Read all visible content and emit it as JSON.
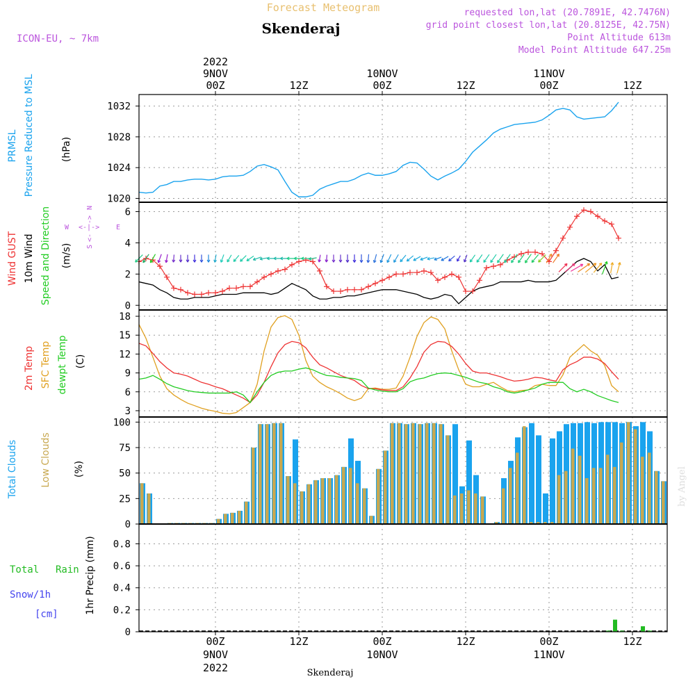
{
  "header": {
    "product": "Forecast Meteogram",
    "model": "ICON-EU, ~ 7km",
    "location": "Skenderaj",
    "requested": "requested lon,lat (20.7891E, 42.7476N)",
    "gridpoint": "grid point closest lon,lat (20.8125E, 42.75N)",
    "point_alt": "Point Altitude 613m",
    "model_alt": "Model Point Altitude 647.25m",
    "watermark": "by Angel",
    "footer_location": "Skenderaj"
  },
  "colors": {
    "pressure": "#1aa3ee",
    "gust": "#ee3333",
    "wind10m": "#000000",
    "temp2m": "#ee3333",
    "sfc": "#e0a020",
    "dewpt": "#22cc22",
    "total_clouds": "#1aa3ee",
    "low_clouds": "#c8a850",
    "rain": "#22bb22",
    "snow": "#4444ee",
    "label_purple": "#bb55dd"
  },
  "panel_labels": {
    "pressure": [
      "PRMSL",
      "Pressure Reduced to MSL",
      "(hPa)"
    ],
    "wind": [
      "Wind GUST",
      "10m Wind",
      "Speed and Direction",
      "(m/s)"
    ],
    "compass": {
      "n": "N",
      "e": "E",
      "w": "W",
      "s": "S"
    },
    "temp": [
      "2m Temp",
      "SFC Temp",
      "dewpt Temp",
      "(C)"
    ],
    "clouds": [
      "Total Clouds",
      "Low Clouds",
      "(%)"
    ],
    "precip": [
      "Total",
      "Rain",
      "Snow/1h",
      "[cm]",
      "1hr Precip (mm)"
    ]
  },
  "chart_data": {
    "type": "line",
    "time_axis": {
      "top_ticks": [
        {
          "hour": 0,
          "lines": [
            "2022",
            "9NOV",
            "00Z"
          ]
        },
        {
          "hour": 12,
          "lines": [
            "12Z"
          ]
        },
        {
          "hour": 24,
          "lines": [
            "10NOV",
            "00Z"
          ]
        },
        {
          "hour": 36,
          "lines": [
            "12Z"
          ]
        },
        {
          "hour": 48,
          "lines": [
            "11NOV",
            "00Z"
          ]
        },
        {
          "hour": 60,
          "lines": [
            "12Z"
          ]
        }
      ],
      "bottom_ticks": [
        {
          "hour": 0,
          "lines": [
            "00Z",
            "9NOV",
            "2022"
          ]
        },
        {
          "hour": 12,
          "lines": [
            "12Z"
          ]
        },
        {
          "hour": 24,
          "lines": [
            "00Z",
            "10NOV"
          ]
        },
        {
          "hour": 36,
          "lines": [
            "12Z"
          ]
        },
        {
          "hour": 48,
          "lines": [
            "00Z",
            "11NOV"
          ]
        },
        {
          "hour": 60,
          "lines": [
            "12Z"
          ]
        }
      ],
      "hours_start": -11,
      "hours_end": 65
    },
    "pressure": {
      "ylim": [
        1019.5,
        1033.5
      ],
      "yticks": [
        1020,
        1024,
        1028,
        1032
      ],
      "values": [
        1020.8,
        1020.7,
        1020.8,
        1021.6,
        1021.8,
        1022.2,
        1022.2,
        1022.4,
        1022.5,
        1022.5,
        1022.4,
        1022.5,
        1022.8,
        1022.9,
        1022.9,
        1023.0,
        1023.5,
        1024.2,
        1024.4,
        1024.1,
        1023.7,
        1022.2,
        1020.8,
        1020.2,
        1020.2,
        1020.4,
        1021.2,
        1021.6,
        1021.9,
        1022.2,
        1022.2,
        1022.5,
        1023.0,
        1023.3,
        1023.0,
        1023.0,
        1023.2,
        1023.5,
        1024.3,
        1024.7,
        1024.6,
        1023.8,
        1022.9,
        1022.4,
        1022.9,
        1023.3,
        1023.8,
        1024.8,
        1026.0,
        1026.8,
        1027.6,
        1028.5,
        1029.0,
        1029.3,
        1029.6,
        1029.7,
        1029.8,
        1029.9,
        1030.2,
        1030.8,
        1031.5,
        1031.7,
        1031.5,
        1030.6,
        1030.3,
        1030.4,
        1030.5,
        1030.6,
        1031.4,
        1032.5
      ]
    },
    "wind": {
      "ylim": [
        -0.3,
        6.6
      ],
      "yticks": [
        0,
        2,
        4,
        6
      ],
      "gust": [
        2.8,
        3.0,
        2.9,
        2.5,
        1.8,
        1.1,
        1.0,
        0.8,
        0.7,
        0.7,
        0.8,
        0.8,
        0.9,
        1.1,
        1.1,
        1.2,
        1.2,
        1.5,
        1.8,
        2.0,
        2.2,
        2.3,
        2.6,
        2.8,
        2.9,
        2.8,
        2.2,
        1.2,
        0.9,
        0.9,
        1.0,
        1.0,
        1.0,
        1.2,
        1.4,
        1.6,
        1.8,
        2.0,
        2.0,
        2.1,
        2.1,
        2.2,
        2.1,
        1.6,
        1.8,
        2.0,
        1.8,
        0.9,
        0.9,
        1.6,
        2.4,
        2.5,
        2.6,
        2.9,
        3.1,
        3.3,
        3.4,
        3.4,
        3.3,
        2.8,
        3.5,
        4.3,
        5.0,
        5.7,
        6.1,
        6.0,
        5.7,
        5.4,
        5.2,
        4.3
      ],
      "wind10m": [
        1.5,
        1.4,
        1.3,
        1.0,
        0.8,
        0.5,
        0.4,
        0.4,
        0.5,
        0.5,
        0.5,
        0.6,
        0.7,
        0.7,
        0.7,
        0.8,
        0.8,
        0.8,
        0.8,
        0.7,
        0.8,
        1.1,
        1.4,
        1.2,
        1.0,
        0.6,
        0.4,
        0.4,
        0.5,
        0.5,
        0.6,
        0.6,
        0.7,
        0.8,
        0.9,
        1.0,
        1.0,
        1.0,
        0.9,
        0.8,
        0.7,
        0.5,
        0.4,
        0.5,
        0.7,
        0.6,
        0.1,
        0.5,
        0.9,
        1.1,
        1.2,
        1.3,
        1.5,
        1.5,
        1.5,
        1.5,
        1.6,
        1.5,
        1.5,
        1.5,
        1.6,
        2.0,
        2.4,
        2.8,
        3.0,
        2.8,
        2.2,
        2.6,
        1.7,
        1.8
      ],
      "arrow_dirs_deg": [
        225,
        235,
        240,
        250,
        260,
        265,
        270,
        270,
        270,
        270,
        270,
        260,
        250,
        240,
        230,
        225,
        215,
        200,
        190,
        180,
        180,
        180,
        180,
        180,
        180,
        190,
        260,
        265,
        270,
        270,
        270,
        270,
        270,
        265,
        255,
        250,
        245,
        240,
        230,
        220,
        210,
        200,
        190,
        200,
        210,
        220,
        240,
        250,
        235,
        235,
        235,
        235,
        235,
        235,
        235,
        235,
        235,
        230,
        225,
        60,
        55,
        45,
        40,
        30,
        35,
        40,
        50,
        70,
        80,
        75
      ]
    },
    "temperature": {
      "ylim": [
        2,
        19
      ],
      "yticks": [
        3,
        6,
        9,
        12,
        15,
        18
      ],
      "t2m": [
        13.7,
        13.3,
        12.1,
        10.8,
        9.8,
        9.0,
        8.8,
        8.5,
        8.0,
        7.5,
        7.2,
        6.8,
        6.5,
        6.0,
        5.5,
        5.0,
        4.3,
        5.5,
        7.5,
        10.0,
        12.2,
        13.5,
        14.0,
        13.8,
        13.0,
        11.5,
        10.3,
        9.8,
        9.2,
        8.6,
        8.2,
        7.8,
        7.0,
        6.5,
        6.5,
        6.3,
        6.2,
        6.2,
        6.8,
        8.2,
        10.0,
        12.3,
        13.5,
        14.0,
        13.9,
        13.2,
        12.0,
        10.5,
        9.3,
        9.0,
        9.0,
        8.7,
        8.4,
        8.0,
        7.7,
        7.8,
        8.0,
        8.3,
        8.2,
        7.9,
        7.7,
        9.5,
        10.3,
        10.8,
        11.5,
        11.5,
        11.2,
        10.5,
        9.2,
        8.0
      ],
      "sfc": [
        16.7,
        14.5,
        11.5,
        8.5,
        6.5,
        5.5,
        4.8,
        4.2,
        3.8,
        3.4,
        3.1,
        2.9,
        2.6,
        2.5,
        2.7,
        3.5,
        4.3,
        7.2,
        12.5,
        16.3,
        17.8,
        18.1,
        17.5,
        15.0,
        11.0,
        8.5,
        7.5,
        6.8,
        6.3,
        5.7,
        5.0,
        4.6,
        5.0,
        6.5,
        6.6,
        6.4,
        6.4,
        6.6,
        8.5,
        11.5,
        14.8,
        17.0,
        17.9,
        17.5,
        16.0,
        12.5,
        9.5,
        7.2,
        6.8,
        6.8,
        7.2,
        7.5,
        6.8,
        6.2,
        6.0,
        6.2,
        6.3,
        7.0,
        7.2,
        7.0,
        7.0,
        8.7,
        11.5,
        12.5,
        13.5,
        12.5,
        11.8,
        10.2,
        7.0,
        6.0
      ],
      "dewpt": [
        8.0,
        8.2,
        8.6,
        8.0,
        7.3,
        6.8,
        6.5,
        6.2,
        6.0,
        5.9,
        5.8,
        5.8,
        5.8,
        5.8,
        6.0,
        5.5,
        4.3,
        6.0,
        7.5,
        8.6,
        9.1,
        9.3,
        9.3,
        9.6,
        9.8,
        9.5,
        9.0,
        8.6,
        8.5,
        8.3,
        8.2,
        8.1,
        7.8,
        6.6,
        6.3,
        6.1,
        6.0,
        6.0,
        6.5,
        7.6,
        8.0,
        8.2,
        8.6,
        8.9,
        9.0,
        8.9,
        8.6,
        8.3,
        7.9,
        7.5,
        7.3,
        6.8,
        6.5,
        6.0,
        5.8,
        6.0,
        6.3,
        6.6,
        7.2,
        7.5,
        7.5,
        7.5,
        6.5,
        6.0,
        6.4,
        6.0,
        5.4,
        5.0,
        4.6,
        4.3
      ],
      "axis_color": "#000000"
    },
    "clouds": {
      "ylim": [
        0,
        105
      ],
      "yticks": [
        0,
        25,
        50,
        75,
        100
      ],
      "total": [
        40,
        30,
        0,
        0,
        1,
        1,
        1,
        1,
        1,
        1,
        1,
        5,
        10,
        11,
        13,
        22,
        75,
        98,
        98,
        99,
        99,
        47,
        83,
        32,
        39,
        43,
        45,
        45,
        48,
        56,
        84,
        62,
        35,
        8,
        54,
        72,
        99,
        99,
        98,
        99,
        98,
        99,
        99,
        98,
        87,
        98,
        37,
        82,
        48,
        27,
        0,
        2,
        45,
        62,
        85,
        95,
        99,
        87,
        30,
        84,
        91,
        98,
        99,
        99,
        100,
        99,
        100,
        100,
        100,
        99,
        100,
        96,
        100,
        91,
        52,
        42
      ],
      "low": [
        40,
        30,
        0,
        0,
        1,
        1,
        1,
        1,
        1,
        1,
        1,
        5,
        10,
        11,
        13,
        22,
        75,
        98,
        98,
        99,
        99,
        47,
        40,
        32,
        39,
        43,
        45,
        45,
        48,
        56,
        55,
        40,
        35,
        8,
        54,
        72,
        99,
        99,
        98,
        99,
        98,
        99,
        99,
        98,
        87,
        28,
        30,
        33,
        30,
        27,
        0,
        2,
        35,
        55,
        70,
        96,
        2,
        2,
        2,
        2,
        48,
        52,
        74,
        67,
        45,
        55,
        55,
        68,
        56,
        80,
        100,
        93,
        66,
        70,
        52,
        42
      ]
    },
    "precip": {
      "ylim": [
        0,
        0.98
      ],
      "yticks": [
        0,
        0.2,
        0.4,
        0.6,
        0.8
      ],
      "rain": [
        {
          "hour": 56.5,
          "value": 0.01
        },
        {
          "hour": 57.5,
          "value": 0.11
        },
        {
          "hour": 58.5,
          "value": 0.01
        },
        {
          "hour": 61.5,
          "value": 0.05
        },
        {
          "hour": 62.5,
          "value": 0.01
        }
      ]
    }
  }
}
